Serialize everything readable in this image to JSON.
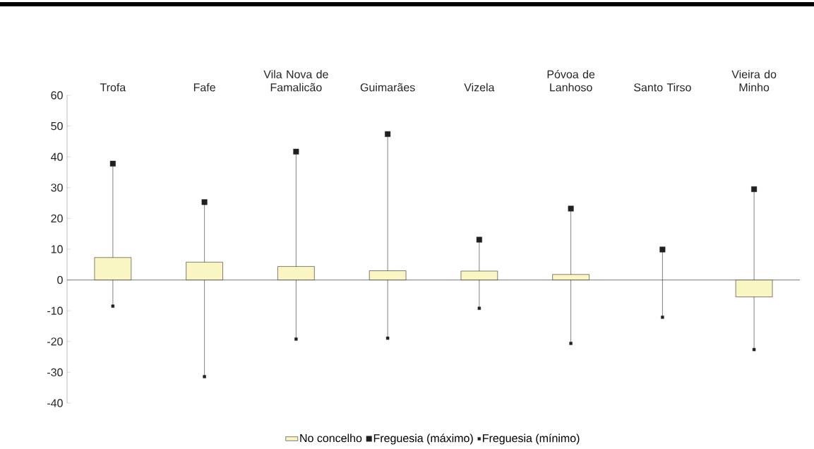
{
  "chart_data": {
    "type": "bar",
    "categories": [
      "Trofa",
      "Fafe",
      "Vila Nova de Famalicão",
      "Guimarães",
      "Vizela",
      "Póvoa de Lanhoso",
      "Santo Tirso",
      "Vieira do Minho"
    ],
    "series": [
      {
        "name": "No concelho",
        "color": "#f9f6c3",
        "values": [
          7.3,
          5.8,
          4.4,
          3.0,
          2.9,
          1.8,
          0,
          -5.5
        ]
      },
      {
        "name": "Freguesia (máximo)",
        "type": "scatter",
        "color": "#231f20",
        "values": [
          37.8,
          25.3,
          41.7,
          47.4,
          13.1,
          23.2,
          9.9,
          29.5
        ]
      },
      {
        "name": "Freguesia (mínimo)",
        "type": "scatter",
        "color": "#231f20",
        "values": [
          -8.5,
          -31.4,
          -19.2,
          -18.9,
          -9.2,
          -20.6,
          -12.1,
          -22.6
        ]
      }
    ],
    "ylim": [
      -40,
      60
    ],
    "yticks": [
      -40,
      -30,
      -20,
      -10,
      0,
      10,
      20,
      30,
      40,
      50,
      60
    ],
    "legend": "bottom",
    "marker": "square"
  }
}
